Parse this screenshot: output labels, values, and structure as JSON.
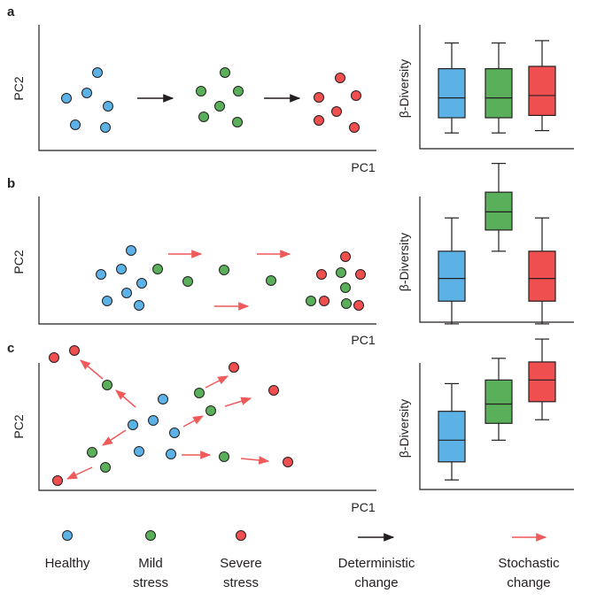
{
  "colors": {
    "healthy": "#5cb2e6",
    "mild": "#5aaf5a",
    "severe": "#ef4f4f",
    "deterministic": "#231f20",
    "stochastic": "#ef5a5a"
  },
  "panels": [
    {
      "label": "a",
      "xlabel": "PC1",
      "ylabel": "PC2",
      "box_ylabel": "β-Diversity",
      "points": {
        "healthy": [
          [
            110,
            82
          ],
          [
            98,
            105
          ],
          [
            75,
            111
          ],
          [
            122,
            120
          ],
          [
            85,
            141
          ],
          [
            119,
            144
          ]
        ],
        "mild": [
          [
            254,
            82
          ],
          [
            227,
            103
          ],
          [
            269,
            103
          ],
          [
            248,
            120
          ],
          [
            230,
            132
          ],
          [
            268,
            138
          ]
        ],
        "severe": [
          [
            384,
            88
          ],
          [
            360,
            110
          ],
          [
            402,
            108
          ],
          [
            380,
            126
          ],
          [
            360,
            136
          ],
          [
            400,
            144
          ]
        ]
      },
      "arrows": [
        {
          "kind": "deterministic",
          "from": [
            155,
            111
          ],
          "to": [
            195,
            111
          ]
        },
        {
          "kind": "deterministic",
          "from": [
            298,
            111
          ],
          "to": [
            338,
            111
          ]
        }
      ],
      "box": {
        "healthy": {
          "whisker_low": 0.15,
          "q1": 0.28,
          "median": 0.45,
          "q3": 0.7,
          "whisker_high": 0.92
        },
        "mild": {
          "whisker_low": 0.15,
          "q1": 0.28,
          "median": 0.45,
          "q3": 0.7,
          "whisker_high": 0.92
        },
        "severe": {
          "whisker_low": 0.17,
          "q1": 0.3,
          "median": 0.47,
          "q3": 0.72,
          "whisker_high": 0.94
        }
      }
    },
    {
      "label": "b",
      "xlabel": "PC1",
      "ylabel": "PC2",
      "box_ylabel": "β-Diversity",
      "points": {
        "healthy": [
          [
            148,
            283
          ],
          [
            114,
            310
          ],
          [
            137,
            304
          ],
          [
            160,
            320
          ],
          [
            121,
            340
          ],
          [
            143,
            331
          ],
          [
            157,
            345
          ]
        ],
        "mild": [
          [
            178,
            304
          ],
          [
            212,
            318
          ],
          [
            253,
            305
          ],
          [
            306,
            317
          ],
          [
            385,
            308
          ],
          [
            351,
            340
          ],
          [
            390,
            325
          ],
          [
            391,
            343
          ]
        ],
        "severe": [
          [
            390,
            290
          ],
          [
            363,
            310
          ],
          [
            407,
            310
          ],
          [
            366,
            340
          ],
          [
            405,
            345
          ]
        ]
      },
      "arrows": [
        {
          "kind": "stochastic",
          "from": [
            190,
            287
          ],
          "to": [
            227,
            287
          ]
        },
        {
          "kind": "stochastic",
          "from": [
            290,
            287
          ],
          "to": [
            327,
            287
          ]
        },
        {
          "kind": "stochastic",
          "from": [
            242,
            346
          ],
          "to": [
            280,
            346
          ]
        }
      ],
      "box": {
        "healthy": {
          "whisker_low": 0.1,
          "q1": 0.25,
          "median": 0.4,
          "q3": 0.58,
          "whisker_high": 0.8
        },
        "mild": {
          "whisker_low": 0.58,
          "q1": 0.72,
          "median": 0.84,
          "q3": 0.97,
          "whisker_high": 1.16
        },
        "severe": {
          "whisker_low": 0.1,
          "q1": 0.25,
          "median": 0.4,
          "q3": 0.58,
          "whisker_high": 0.8
        }
      }
    },
    {
      "label": "c",
      "xlabel": "PC1",
      "ylabel": "PC2",
      "box_ylabel": "β-Diversity",
      "points": {
        "healthy": [
          [
            184,
            451
          ],
          [
            173,
            475
          ],
          [
            150,
            480
          ],
          [
            197,
            489
          ],
          [
            157,
            510
          ],
          [
            193,
            513
          ]
        ],
        "mild": [
          [
            121,
            435
          ],
          [
            225,
            444
          ],
          [
            238,
            464
          ],
          [
            104,
            511
          ],
          [
            119,
            528
          ],
          [
            253,
            516
          ]
        ],
        "severe": [
          [
            61,
            404
          ],
          [
            84,
            396
          ],
          [
            264,
            415
          ],
          [
            309,
            441
          ],
          [
            325,
            522
          ],
          [
            65,
            543
          ]
        ]
      },
      "arrows": [
        {
          "kind": "stochastic",
          "from": [
            116,
            428
          ],
          "to": [
            91,
            407
          ]
        },
        {
          "kind": "stochastic",
          "from": [
            153,
            460
          ],
          "to": [
            131,
            441
          ]
        },
        {
          "kind": "stochastic",
          "from": [
            142,
            486
          ],
          "to": [
            116,
            503
          ]
        },
        {
          "kind": "stochastic",
          "from": [
            104,
            528
          ],
          "to": [
            76,
            541
          ]
        },
        {
          "kind": "stochastic",
          "from": [
            207,
            482
          ],
          "to": [
            229,
            470
          ]
        },
        {
          "kind": "stochastic",
          "from": [
            232,
            438
          ],
          "to": [
            257,
            425
          ]
        },
        {
          "kind": "stochastic",
          "from": [
            254,
            459
          ],
          "to": [
            283,
            450
          ]
        },
        {
          "kind": "stochastic",
          "from": [
            205,
            514
          ],
          "to": [
            237,
            514
          ]
        },
        {
          "kind": "stochastic",
          "from": [
            272,
            518
          ],
          "to": [
            303,
            521
          ]
        }
      ],
      "box": {
        "healthy": {
          "whisker_low": 0.05,
          "q1": 0.2,
          "median": 0.38,
          "q3": 0.62,
          "whisker_high": 0.85
        },
        "mild": {
          "whisker_low": 0.38,
          "q1": 0.52,
          "median": 0.68,
          "q3": 0.88,
          "whisker_high": 1.06
        },
        "severe": {
          "whisker_low": 0.55,
          "q1": 0.7,
          "median": 0.88,
          "q3": 1.03,
          "whisker_high": 1.22
        }
      }
    }
  ],
  "legend": {
    "healthy": {
      "line1": "Healthy",
      "line2": ""
    },
    "mild": {
      "line1": "Mild",
      "line2": "stress"
    },
    "severe": {
      "line1": "Severe",
      "line2": "stress"
    },
    "deterministic": {
      "line1": "Deterministic",
      "line2": "change"
    },
    "stochastic": {
      "line1": "Stochastic",
      "line2": "change"
    }
  }
}
